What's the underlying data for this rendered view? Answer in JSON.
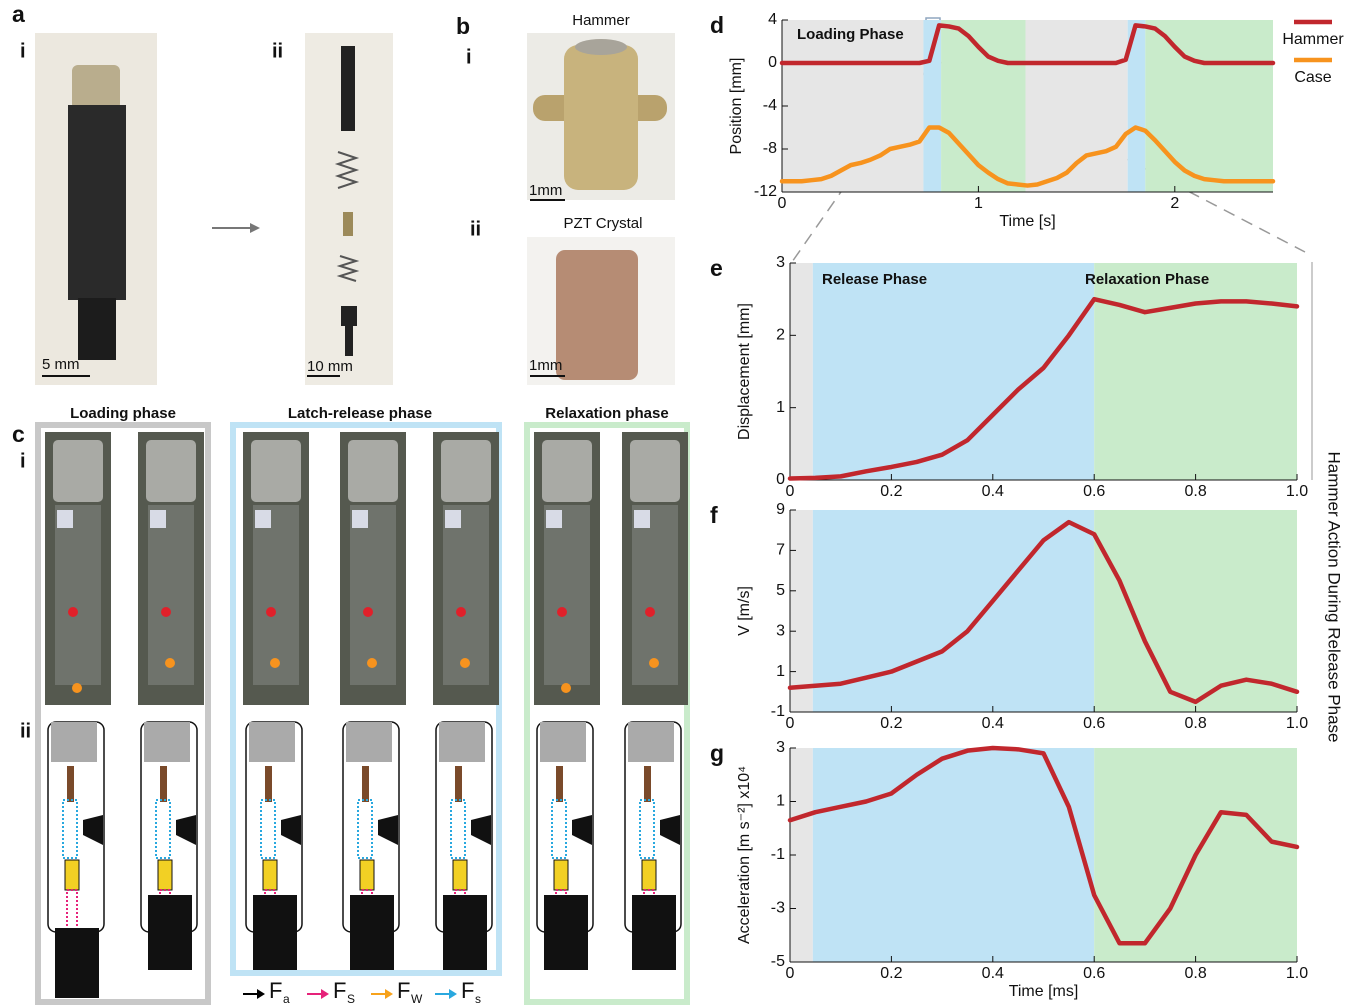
{
  "panels": {
    "a": {
      "label": "a",
      "sub": [
        "i",
        "ii"
      ],
      "scales": [
        "5 mm",
        "10 mm"
      ]
    },
    "b": {
      "label": "b",
      "sub": [
        "i",
        "ii"
      ],
      "titles": [
        "Hammer",
        "PZT Crystal"
      ],
      "scales": [
        "1mm",
        "1mm"
      ]
    },
    "c": {
      "label": "c",
      "sub": [
        "i",
        "ii"
      ],
      "phases": [
        "Loading phase",
        "Latch-release phase",
        "Relaxation phase"
      ],
      "forces": [
        {
          "symbol": "F",
          "sub": "a",
          "color": "#000000"
        },
        {
          "symbol": "F",
          "sub": "S",
          "color": "#e6227a"
        },
        {
          "symbol": "F",
          "sub": "W",
          "color": "#f7a21b"
        },
        {
          "symbol": "F",
          "sub": "s",
          "color": "#29a8df"
        }
      ]
    },
    "side_title": "Hammer Action During Release Phase"
  },
  "chart_data": [
    {
      "panel": "d",
      "type": "line",
      "xlabel": "Time [s]",
      "ylabel": "Position [mm]",
      "annotations": [
        "Loading Phase"
      ],
      "x": [
        0,
        0.05,
        0.1,
        0.15,
        0.2,
        0.25,
        0.3,
        0.35,
        0.4,
        0.45,
        0.5,
        0.55,
        0.6,
        0.65,
        0.7,
        0.75,
        0.8,
        0.85,
        0.9,
        0.95,
        1.0,
        1.05,
        1.1,
        1.15,
        1.2,
        1.25,
        1.3,
        1.35,
        1.4,
        1.45,
        1.5,
        1.55,
        1.6,
        1.65,
        1.7,
        1.75,
        1.8,
        1.85,
        1.9,
        1.95,
        2.0,
        2.05,
        2.1,
        2.15,
        2.2,
        2.25,
        2.3,
        2.35,
        2.4,
        2.45,
        2.5
      ],
      "series": [
        {
          "name": "Hammer",
          "color": "#c1272d",
          "values": [
            0,
            0,
            0,
            0,
            0,
            0,
            0,
            0,
            0,
            0,
            0,
            0,
            0,
            0,
            0,
            0.2,
            3.5,
            3.4,
            3.2,
            2.5,
            1.5,
            0.6,
            0.2,
            0,
            0,
            0,
            0,
            0,
            0,
            0,
            0,
            0,
            0,
            0,
            0,
            0.3,
            3.5,
            3.4,
            3.2,
            2.5,
            1.5,
            0.6,
            0.2,
            0,
            0,
            0,
            0,
            0,
            0,
            0,
            0
          ]
        },
        {
          "name": "Case",
          "color": "#f7931e",
          "values": [
            -11,
            -11,
            -11,
            -10.9,
            -10.8,
            -10.5,
            -10,
            -9.5,
            -9.3,
            -9,
            -8.6,
            -8,
            -7.8,
            -7.6,
            -7.3,
            -6,
            -6,
            -6.5,
            -7.5,
            -8.5,
            -9.5,
            -10.2,
            -10.8,
            -11.2,
            -11.3,
            -11.4,
            -11.3,
            -11,
            -10.7,
            -10.2,
            -9.3,
            -8.6,
            -8.4,
            -8.2,
            -7.8,
            -6.6,
            -6,
            -6.3,
            -7.2,
            -8.2,
            -9.2,
            -10,
            -10.5,
            -10.8,
            -10.9,
            -11,
            -11,
            -11,
            -11,
            -11,
            -11
          ]
        }
      ],
      "xlim": [
        0,
        2.5
      ],
      "xticks": [
        0,
        1,
        2
      ],
      "ylim": [
        -12,
        4
      ],
      "yticks": [
        -12,
        -8,
        -4,
        0,
        4
      ],
      "bands": [
        {
          "start": 0,
          "end": 0.72,
          "color": "#e6e6e6"
        },
        {
          "start": 0.72,
          "end": 0.81,
          "color": "#bfe3f5"
        },
        {
          "start": 0.81,
          "end": 1.24,
          "color": "#c9ebcb"
        },
        {
          "start": 1.24,
          "end": 1.76,
          "color": "#e6e6e6"
        },
        {
          "start": 1.76,
          "end": 1.85,
          "color": "#bfe3f5"
        },
        {
          "start": 1.85,
          "end": 2.5,
          "color": "#c9ebcb"
        }
      ],
      "legend": "outside-right"
    },
    {
      "panel": "e",
      "type": "line",
      "ylabel": "Displacement [mm]",
      "annotations": [
        "Release Phase",
        "Relaxation Phase"
      ],
      "x": [
        0,
        0.05,
        0.1,
        0.15,
        0.2,
        0.25,
        0.3,
        0.35,
        0.4,
        0.45,
        0.5,
        0.55,
        0.6,
        0.65,
        0.7,
        0.75,
        0.8,
        0.85,
        0.9,
        0.95,
        1.0
      ],
      "values": [
        0.02,
        0.03,
        0.05,
        0.12,
        0.18,
        0.25,
        0.35,
        0.55,
        0.9,
        1.25,
        1.55,
        2.0,
        2.5,
        2.42,
        2.32,
        2.38,
        2.44,
        2.47,
        2.47,
        2.44,
        2.4
      ],
      "color": "#c1272d",
      "xlim": [
        0,
        1
      ],
      "xticks": [
        0,
        0.2,
        0.4,
        0.6,
        0.8,
        {
          "value": 1,
          "label": "1.0"
        }
      ],
      "ylim": [
        0,
        3
      ],
      "yticks": [
        0,
        1,
        2,
        3
      ],
      "bands": [
        {
          "start": 0,
          "end": 0.045,
          "color": "#e6e6e6"
        },
        {
          "start": 0.045,
          "end": 0.6,
          "color": "#bfe3f5"
        },
        {
          "start": 0.6,
          "end": 1,
          "color": "#c9ebcb"
        }
      ]
    },
    {
      "panel": "f",
      "type": "line",
      "ylabel": "V [m/s]",
      "x": [
        0,
        0.05,
        0.1,
        0.15,
        0.2,
        0.25,
        0.3,
        0.35,
        0.4,
        0.45,
        0.5,
        0.55,
        0.6,
        0.65,
        0.7,
        0.75,
        0.8,
        0.85,
        0.9,
        0.95,
        1.0
      ],
      "values": [
        0.2,
        0.3,
        0.4,
        0.7,
        1.0,
        1.5,
        2.0,
        3.0,
        4.5,
        6,
        7.5,
        8.4,
        7.8,
        5.5,
        2.5,
        0.0,
        -0.5,
        0.3,
        0.6,
        0.4,
        0.0
      ],
      "color": "#c1272d",
      "xlim": [
        0,
        1
      ],
      "xticks": [
        0,
        0.2,
        0.4,
        0.6,
        0.8,
        {
          "value": 1,
          "label": "1.0"
        }
      ],
      "ylim": [
        -1,
        9
      ],
      "yticks": [
        -1,
        1,
        3,
        5,
        7,
        9
      ],
      "bands": [
        {
          "start": 0,
          "end": 0.045,
          "color": "#e6e6e6"
        },
        {
          "start": 0.045,
          "end": 0.6,
          "color": "#bfe3f5"
        },
        {
          "start": 0.6,
          "end": 1,
          "color": "#c9ebcb"
        }
      ]
    },
    {
      "panel": "g",
      "type": "line",
      "ylabel": "Acceleration [m s⁻²]  x10⁴",
      "xlabel": "Time [ms]",
      "x": [
        0,
        0.05,
        0.1,
        0.15,
        0.2,
        0.25,
        0.3,
        0.35,
        0.4,
        0.45,
        0.5,
        0.55,
        0.6,
        0.65,
        0.7,
        0.75,
        0.8,
        0.85,
        0.9,
        0.95,
        1.0
      ],
      "values": [
        0.3,
        0.6,
        0.8,
        1.0,
        1.3,
        2.0,
        2.6,
        2.9,
        3.0,
        2.95,
        2.8,
        0.8,
        -2.5,
        -4.3,
        -4.3,
        -3,
        -1,
        0.6,
        0.5,
        -0.5,
        -0.7
      ],
      "color": "#c1272d",
      "xlim": [
        0,
        1
      ],
      "xticks": [
        0,
        0.2,
        0.4,
        0.6,
        0.8,
        {
          "value": 1,
          "label": "1.0"
        }
      ],
      "ylim": [
        -5,
        3
      ],
      "yticks": [
        -5,
        -3,
        -1,
        1,
        3
      ],
      "bands": [
        {
          "start": 0,
          "end": 0.045,
          "color": "#e6e6e6"
        },
        {
          "start": 0.045,
          "end": 0.6,
          "color": "#bfe3f5"
        },
        {
          "start": 0.6,
          "end": 1,
          "color": "#c9ebcb"
        }
      ]
    }
  ]
}
